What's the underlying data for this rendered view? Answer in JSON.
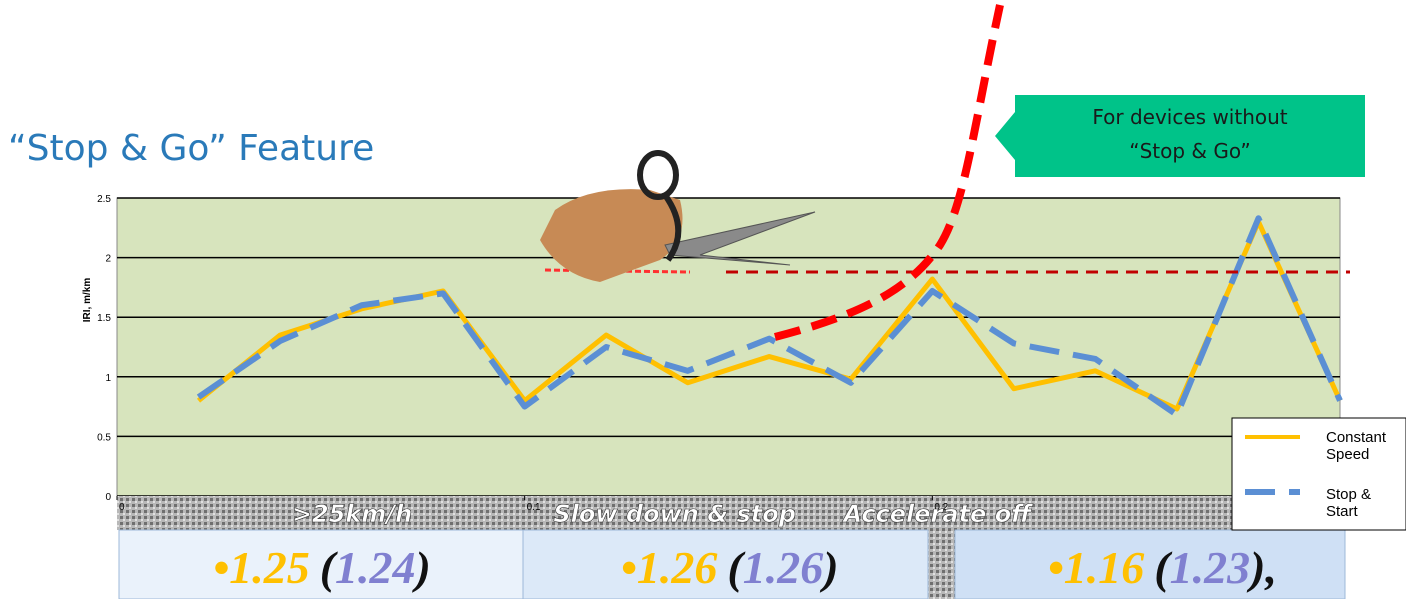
{
  "chart_data": {
    "type": "line",
    "title": "“Stop & Go” Feature",
    "ylabel": "IRI, m/km",
    "x": [
      0.02,
      0.04,
      0.06,
      0.08,
      0.1,
      0.12,
      0.14,
      0.16,
      0.18,
      0.2,
      0.22,
      0.24,
      0.26,
      0.28,
      0.3
    ],
    "series": [
      {
        "name": "Constant Speed",
        "color": "#ffc000",
        "values": [
          0.8,
          1.35,
          1.57,
          1.72,
          0.8,
          1.35,
          0.95,
          1.17,
          0.98,
          1.82,
          0.9,
          1.05,
          0.73,
          2.3,
          0.8
        ]
      },
      {
        "name": "Stop & Start",
        "color": "#5b8fd4",
        "values": [
          0.83,
          1.3,
          1.6,
          1.7,
          0.75,
          1.25,
          1.05,
          1.32,
          0.95,
          1.72,
          1.28,
          1.15,
          0.68,
          2.33,
          0.8
        ]
      }
    ],
    "xlim": [
      0,
      0.3
    ],
    "xticks": [
      0,
      0.1,
      0.2
    ],
    "ylim": [
      0,
      2.5
    ],
    "yticks": [
      0,
      0.5,
      1,
      1.5,
      2,
      2.5
    ],
    "grid": true,
    "legend": "lower-right"
  },
  "callout": [
    "For devices without",
    "“Stop & Go”"
  ],
  "phases": [
    {
      "label": ">25km/h",
      "primary": "•1.25",
      "open": "(",
      "secondary": "1.24",
      "close": ")"
    },
    {
      "label": "Slow down & stop",
      "primary": "•1.26",
      "open": "(",
      "secondary": "1.26",
      "close": ")"
    },
    {
      "label": "Accelerate off",
      "primary": "•1.16",
      "open": "(",
      "secondary": "1.23",
      "close": "),"
    }
  ]
}
